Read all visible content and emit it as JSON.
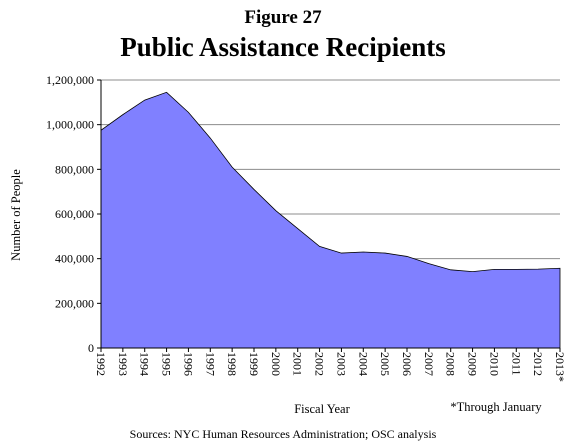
{
  "figure_label": "Figure 27",
  "source": "Sources: NYC Human Resources Administration; OSC analysis",
  "note": "*Through January",
  "chart_data": {
    "type": "area",
    "title": "Public Assistance Recipients",
    "xlabel": "Fiscal Year",
    "ylabel": "Number of People",
    "ylim": [
      0,
      1200000
    ],
    "ytick_values": [
      0,
      200000,
      400000,
      600000,
      800000,
      1000000,
      1200000
    ],
    "ytick_labels": [
      "0",
      "200,000",
      "400,000",
      "600,000",
      "800,000",
      "1,000,000",
      "1,200,000"
    ],
    "categories": [
      "1992",
      "1993",
      "1994",
      "1995",
      "1996",
      "1997",
      "1998",
      "1999",
      "2000",
      "2001",
      "2002",
      "2003",
      "2004",
      "2005",
      "2006",
      "2007",
      "2008",
      "2009",
      "2010",
      "2011",
      "2012",
      "2013*"
    ],
    "series": [
      {
        "values": [
          975000,
          1045000,
          1110000,
          1145000,
          1055000,
          940000,
          810000,
          710000,
          615000,
          535000,
          455000,
          425000,
          430000,
          425000,
          410000,
          378000,
          350000,
          342000,
          352000,
          352000,
          353000,
          357000
        ]
      }
    ],
    "grid": true,
    "fill_color": "#8080ff",
    "line_color": "#000000"
  }
}
